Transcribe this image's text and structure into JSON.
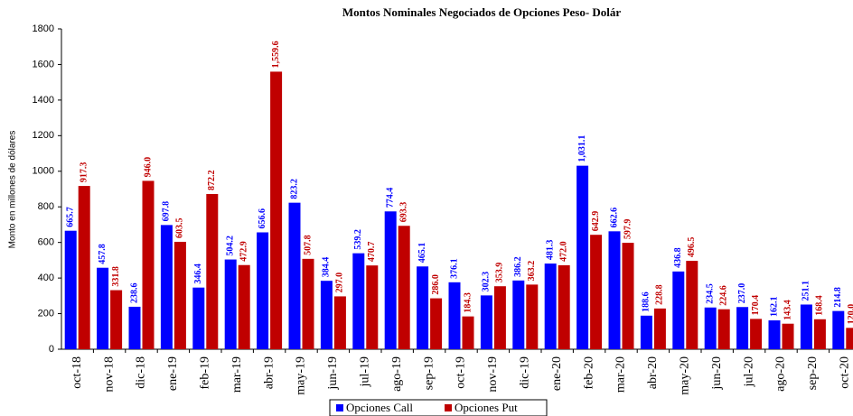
{
  "chart_data": {
    "type": "bar",
    "title": "Montos Nominales Negociados de Opciones Peso- Dolár",
    "y_label": "Monto en millones de dólares",
    "categories": [
      "oct-18",
      "nov-18",
      "dic-18",
      "ene-19",
      "feb-19",
      "mar-19",
      "abr-19",
      "may-19",
      "jun-19",
      "jul-19",
      "ago-19",
      "sep-19",
      "oct-19",
      "nov-19",
      "dic-19",
      "ene-20",
      "feb-20",
      "mar-20",
      "abr-20",
      "may-20",
      "jun-20",
      "jul-20",
      "ago-20",
      "sep-20",
      "oct-20"
    ],
    "series": [
      {
        "name": "Opciones Call",
        "color": "#0000ff",
        "values": [
          665.7,
          457.8,
          238.6,
          697.8,
          346.4,
          504.2,
          656.6,
          823.2,
          384.4,
          539.2,
          774.4,
          465.1,
          376.1,
          302.3,
          386.2,
          481.3,
          1031.1,
          662.6,
          188.6,
          436.8,
          234.5,
          237.0,
          162.1,
          251.1,
          214.8
        ],
        "value_labels": [
          "665.7",
          "457.8",
          "238.6",
          "697.8",
          "346.4",
          "504.2",
          "656.6",
          "823.2",
          "384.4",
          "539.2",
          "774.4",
          "465.1",
          "376.1",
          "302.3",
          "386.2",
          "481.3",
          "1,031.1",
          "662.6",
          "188.6",
          "436.8",
          "234.5",
          "237.0",
          "162.1",
          "251.1",
          "214.8"
        ]
      },
      {
        "name": "Opciones Put",
        "color": "#c00000",
        "values": [
          917.3,
          331.8,
          946.0,
          603.5,
          872.2,
          472.9,
          1559.6,
          507.8,
          297.0,
          470.7,
          693.3,
          286.0,
          184.3,
          353.9,
          363.2,
          472.0,
          642.9,
          597.9,
          228.8,
          496.5,
          224.6,
          170.4,
          143.4,
          168.4,
          120.0
        ],
        "value_labels": [
          "917.3",
          "331.8",
          "946.0",
          "603.5",
          "872.2",
          "472.9",
          "1,559.6",
          "507.8",
          "297.0",
          "470.7",
          "693.3",
          "286.0",
          "184.3",
          "353.9",
          "363.2",
          "472.0",
          "642.9",
          "597.9",
          "228.8",
          "496.5",
          "224.6",
          "170.4",
          "143.4",
          "168.4",
          "120.0"
        ]
      }
    ],
    "ylim": [
      0,
      1800
    ],
    "yticks": [
      0,
      200,
      400,
      600,
      800,
      1000,
      1200,
      1400,
      1600,
      1800
    ],
    "legend": "bottom"
  }
}
